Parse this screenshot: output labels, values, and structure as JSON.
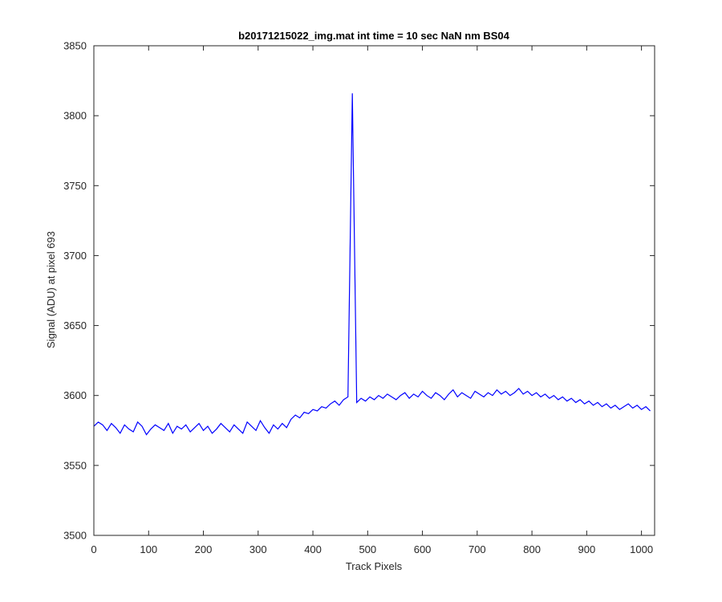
{
  "chart_data": {
    "type": "line",
    "title": "b20171215022_img.mat int time = 10 sec  NaN nm BS04",
    "xlabel": "Track Pixels",
    "ylabel": "Signal (ADU) at pixel 693",
    "xlim": [
      0,
      1024
    ],
    "ylim": [
      3500,
      3850
    ],
    "x_ticks": [
      0,
      100,
      200,
      300,
      400,
      500,
      600,
      700,
      800,
      900,
      1000
    ],
    "y_ticks": [
      3500,
      3550,
      3600,
      3650,
      3700,
      3750,
      3800,
      3850
    ],
    "x_tick_labels": [
      "0",
      "100",
      "200",
      "300",
      "400",
      "500",
      "600",
      "700",
      "800",
      "900",
      "1000"
    ],
    "y_tick_labels": [
      "3500",
      "3550",
      "3600",
      "3650",
      "3700",
      "3750",
      "3800",
      "3850"
    ],
    "grid": false,
    "legend": "none",
    "series": [
      {
        "color": "#0000ff",
        "x_start": 0,
        "x_step": 8,
        "values": [
          3578,
          3581,
          3579,
          3575,
          3580,
          3577,
          3573,
          3579,
          3576,
          3574,
          3581,
          3578,
          3572,
          3576,
          3579,
          3577,
          3575,
          3580,
          3573,
          3578,
          3576,
          3579,
          3574,
          3577,
          3580,
          3575,
          3578,
          3573,
          3576,
          3580,
          3577,
          3574,
          3579,
          3576,
          3573,
          3581,
          3578,
          3575,
          3582,
          3577,
          3573,
          3579,
          3576,
          3580,
          3577,
          3583,
          3586,
          3584,
          3588,
          3587,
          3590,
          3589,
          3592,
          3591,
          3594,
          3596,
          3593,
          3597,
          3599,
          3816,
          3595,
          3598,
          3596,
          3599,
          3597,
          3600,
          3598,
          3601,
          3599,
          3597,
          3600,
          3602,
          3598,
          3601,
          3599,
          3603,
          3600,
          3598,
          3602,
          3600,
          3597,
          3601,
          3604,
          3599,
          3602,
          3600,
          3598,
          3603,
          3601,
          3599,
          3602,
          3600,
          3604,
          3601,
          3603,
          3600,
          3602,
          3605,
          3601,
          3603,
          3600,
          3602,
          3599,
          3601,
          3598,
          3600,
          3597,
          3599,
          3596,
          3598,
          3595,
          3597,
          3594,
          3596,
          3593,
          3595,
          3592,
          3594,
          3591,
          3593,
          3590,
          3592,
          3594,
          3591,
          3593,
          3590,
          3592,
          3589
        ]
      }
    ],
    "annotations": {
      "spike_x": 459,
      "spike_y": 3816,
      "min_x": 75,
      "min_y": 3541
    }
  }
}
